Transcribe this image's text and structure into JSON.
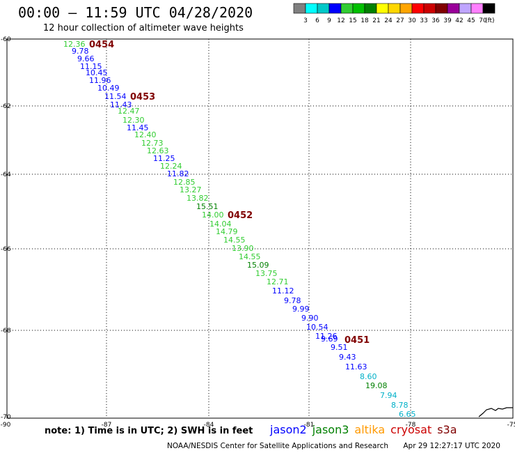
{
  "header": {
    "title": "00:00 — 11:59 UTC 04/28/2020",
    "subtitle": "12 hour collection of altimeter wave heights"
  },
  "legend": {
    "unit": "(ft)",
    "bins": [
      {
        "label": "3",
        "color": "#808080"
      },
      {
        "label": "6",
        "color": "#00ffff"
      },
      {
        "label": "9",
        "color": "#00c8c8"
      },
      {
        "label": "12",
        "color": "#0000ff"
      },
      {
        "label": "15",
        "color": "#32cd32"
      },
      {
        "label": "18",
        "color": "#00c000"
      },
      {
        "label": "21",
        "color": "#008000"
      },
      {
        "label": "24",
        "color": "#ffff00"
      },
      {
        "label": "27",
        "color": "#ffd700"
      },
      {
        "label": "30",
        "color": "#ffa500"
      },
      {
        "label": "33",
        "color": "#ff0000"
      },
      {
        "label": "36",
        "color": "#cc0000"
      },
      {
        "label": "39",
        "color": "#800000"
      },
      {
        "label": "42",
        "color": "#990099"
      },
      {
        "label": "45",
        "color": "#bfa5ff"
      },
      {
        "label": "70",
        "color": "#ff80ff"
      },
      {
        "label": "",
        "color": "#000000"
      }
    ]
  },
  "axes": {
    "lat_ticks": [
      "-60",
      "-62",
      "-64",
      "-66",
      "-68",
      "-70"
    ],
    "lon_ticks": [
      "-90",
      "-87",
      "-84",
      "-81",
      "-78",
      "-75"
    ]
  },
  "passes": [
    "0454",
    "0453",
    "0452",
    "0451"
  ],
  "readings": [
    {
      "v": "12.36",
      "c": "#32cd32"
    },
    {
      "v": "9.78",
      "c": "#0000ff"
    },
    {
      "v": "9.66",
      "c": "#0000ff"
    },
    {
      "v": "11.15",
      "c": "#0000ff"
    },
    {
      "v": "10.45",
      "c": "#0000ff"
    },
    {
      "v": "11.96",
      "c": "#0000ff"
    },
    {
      "v": "10.49",
      "c": "#0000ff"
    },
    {
      "v": "11.54",
      "c": "#0000ff"
    },
    {
      "v": "11.43",
      "c": "#0000ff"
    },
    {
      "v": "12.47",
      "c": "#32cd32"
    },
    {
      "v": "12.30",
      "c": "#32cd32"
    },
    {
      "v": "11.45",
      "c": "#0000ff"
    },
    {
      "v": "12.40",
      "c": "#32cd32"
    },
    {
      "v": "12.73",
      "c": "#32cd32"
    },
    {
      "v": "12.63",
      "c": "#32cd32"
    },
    {
      "v": "11.25",
      "c": "#0000ff"
    },
    {
      "v": "12.24",
      "c": "#32cd32"
    },
    {
      "v": "11.82",
      "c": "#0000ff"
    },
    {
      "v": "12.85",
      "c": "#32cd32"
    },
    {
      "v": "13.27",
      "c": "#32cd32"
    },
    {
      "v": "13.82",
      "c": "#32cd32"
    },
    {
      "v": "15.51",
      "c": "#008000"
    },
    {
      "v": "14.00",
      "c": "#32cd32"
    },
    {
      "v": "14.04",
      "c": "#32cd32"
    },
    {
      "v": "14.79",
      "c": "#32cd32"
    },
    {
      "v": "14.55",
      "c": "#32cd32"
    },
    {
      "v": "13.90",
      "c": "#32cd32"
    },
    {
      "v": "14.55",
      "c": "#32cd32"
    },
    {
      "v": "15.09",
      "c": "#008000"
    },
    {
      "v": "13.75",
      "c": "#32cd32"
    },
    {
      "v": "12.71",
      "c": "#32cd32"
    },
    {
      "v": "11.12",
      "c": "#0000ff"
    },
    {
      "v": "9.78",
      "c": "#0000ff"
    },
    {
      "v": "9.99",
      "c": "#0000ff"
    },
    {
      "v": "9.90",
      "c": "#0000ff"
    },
    {
      "v": "10.54",
      "c": "#0000ff"
    },
    {
      "v": "11.26",
      "c": "#0000ff"
    },
    {
      "v": "9.69",
      "c": "#0000ff"
    },
    {
      "v": "9.51",
      "c": "#0000ff"
    },
    {
      "v": "9.43",
      "c": "#0000ff"
    },
    {
      "v": "11.63",
      "c": "#0000ff"
    },
    {
      "v": "8.60",
      "c": "#00b0c8"
    },
    {
      "v": "19.08",
      "c": "#008000"
    },
    {
      "v": "7.94",
      "c": "#00b0c8"
    },
    {
      "v": "8.78",
      "c": "#00b0c8"
    },
    {
      "v": "6.65",
      "c": "#00b0c8"
    }
  ],
  "note": "note: 1) Time is in UTC; 2) SWH is in feet",
  "satellites": [
    {
      "name": "jason2",
      "color": "#0000ff"
    },
    {
      "name": "jason3",
      "color": "#008000"
    },
    {
      "name": "altika",
      "color": "#ff9900"
    },
    {
      "name": "cryosat",
      "color": "#cc0000"
    },
    {
      "name": "s3a",
      "color": "#800000"
    }
  ],
  "footer": {
    "org": "NOAA/NESDIS Center for Satellite Applications and Research",
    "timestamp": "Apr 29 12:27:17 UTC 2020"
  }
}
